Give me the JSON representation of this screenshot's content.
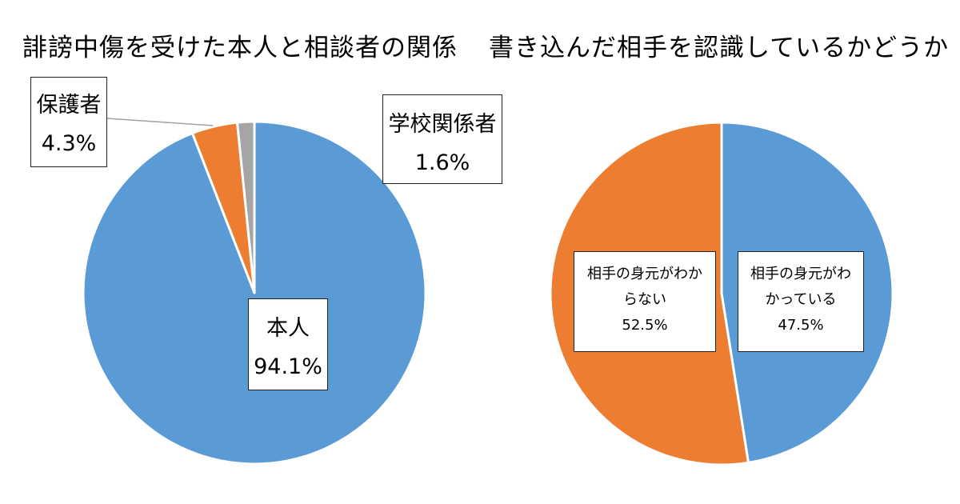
{
  "chart_data": [
    {
      "type": "pie",
      "title": "誹謗中傷を受けた本人と相談者の関係",
      "slices": [
        {
          "label": "本人",
          "value_label": "94.1%",
          "value": 94.1,
          "color": "#5b9bd5"
        },
        {
          "label": "保護者",
          "value_label": "4.3%",
          "value": 4.3,
          "color": "#ed7d31"
        },
        {
          "label": "学校関係者",
          "value_label": "1.6%",
          "value": 1.6,
          "color": "#a5a5a5"
        }
      ]
    },
    {
      "type": "pie",
      "title": "書き込んだ相手を認識しているかどうか",
      "slices": [
        {
          "label_lines": [
            "相手の身元がわ",
            "かっている"
          ],
          "value_label": "47.5%",
          "value": 47.5,
          "color": "#5b9bd5"
        },
        {
          "label_lines": [
            "相手の身元がわか",
            "らない"
          ],
          "value_label": "52.5%",
          "value": 52.5,
          "color": "#ed7d31"
        }
      ]
    }
  ]
}
